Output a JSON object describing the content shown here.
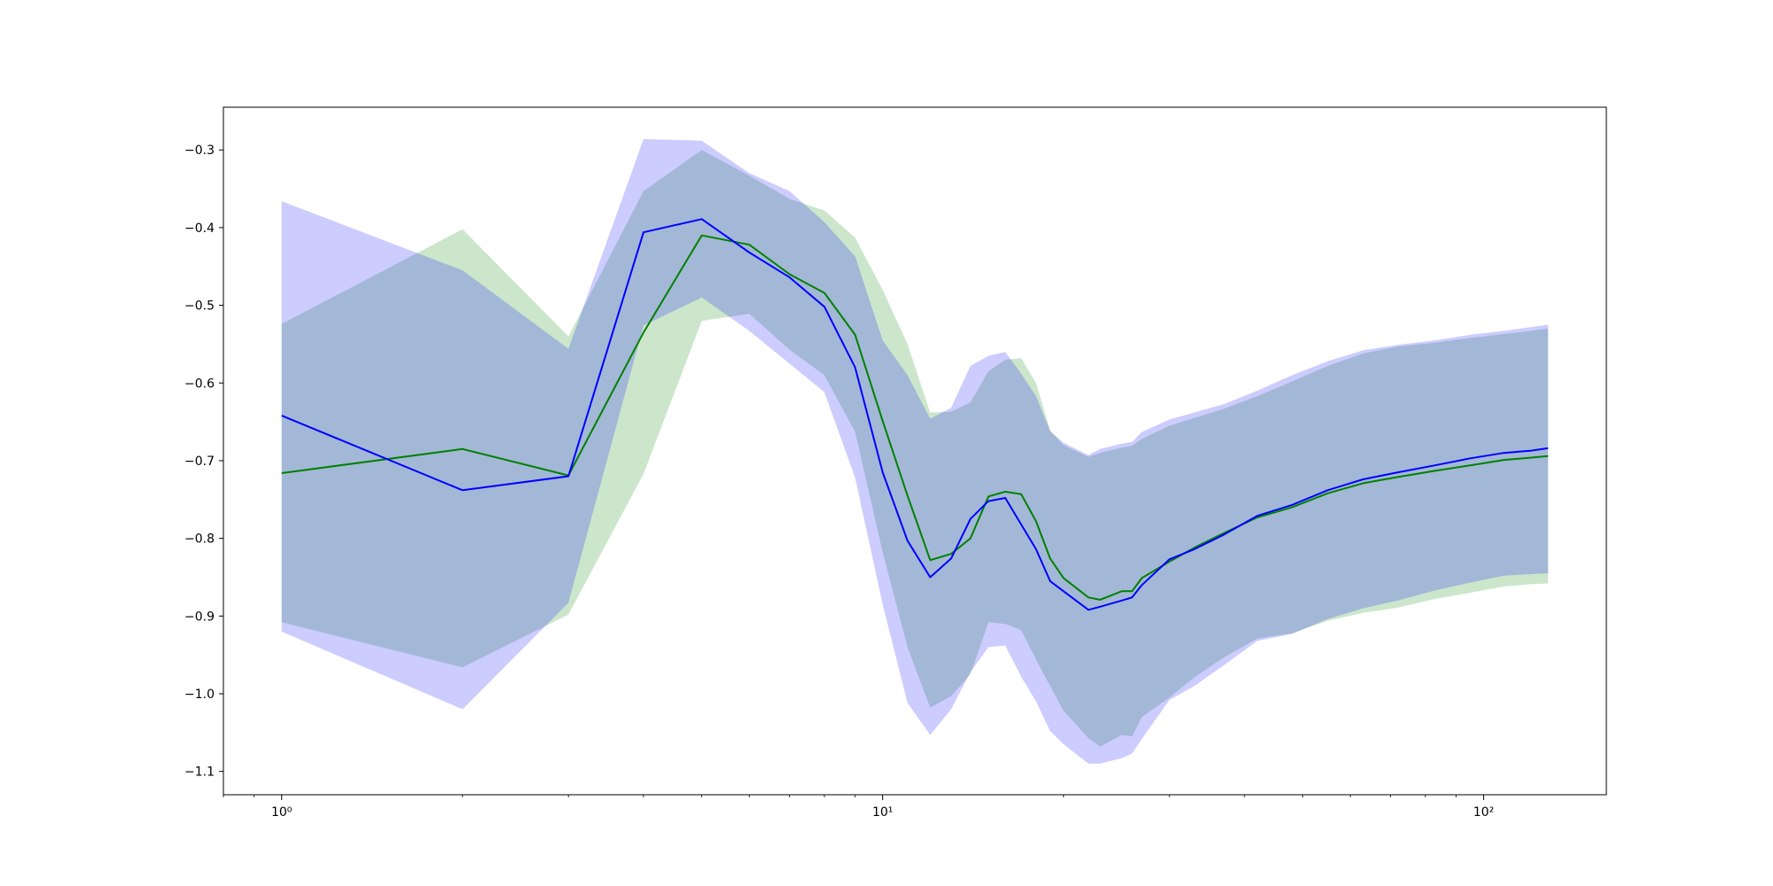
{
  "chart_data": {
    "type": "line",
    "title": "",
    "xlabel": "",
    "ylabel": "",
    "xscale": "log",
    "xlim": [
      0.8,
      160
    ],
    "ylim": [
      -1.13,
      -0.245
    ],
    "grid": false,
    "legend": "none",
    "x_major_ticks": [
      {
        "value": 1,
        "label": "10⁰"
      },
      {
        "value": 10,
        "label": "10¹"
      },
      {
        "value": 100,
        "label": "10²"
      }
    ],
    "y_ticks": [
      {
        "value": -1.1,
        "label": "−1.1"
      },
      {
        "value": -1.0,
        "label": "−1.0"
      },
      {
        "value": -0.9,
        "label": "−0.9"
      },
      {
        "value": -0.8,
        "label": "−0.8"
      },
      {
        "value": -0.7,
        "label": "−0.7"
      },
      {
        "value": -0.6,
        "label": "−0.6"
      },
      {
        "value": -0.5,
        "label": "−0.5"
      },
      {
        "value": -0.4,
        "label": "−0.4"
      },
      {
        "value": -0.3,
        "label": "−0.3"
      }
    ],
    "series": [
      {
        "color": "#008000",
        "band_color": "#008000",
        "band_opacity": 0.2,
        "points": [
          [
            1,
            -0.716,
            -0.524,
            -0.908
          ],
          [
            2,
            -0.685,
            -0.402,
            -0.966
          ],
          [
            3,
            -0.719,
            -0.54,
            -0.898
          ],
          [
            4,
            -0.535,
            -0.353,
            -0.717
          ],
          [
            5,
            -0.41,
            -0.3,
            -0.52
          ],
          [
            6,
            -0.422,
            -0.333,
            -0.511
          ],
          [
            7,
            -0.46,
            -0.363,
            -0.557
          ],
          [
            8,
            -0.484,
            -0.378,
            -0.59
          ],
          [
            9,
            -0.538,
            -0.413,
            -0.663
          ],
          [
            10,
            -0.649,
            -0.48,
            -0.818
          ],
          [
            11,
            -0.745,
            -0.55,
            -0.94
          ],
          [
            12,
            -0.828,
            -0.638,
            -1.018
          ],
          [
            13,
            -0.82,
            -0.637,
            -1.003
          ],
          [
            14,
            -0.8,
            -0.625,
            -0.975
          ],
          [
            15,
            -0.746,
            -0.585,
            -0.908
          ],
          [
            16,
            -0.74,
            -0.57,
            -0.91
          ],
          [
            17,
            -0.743,
            -0.568,
            -0.918
          ],
          [
            18,
            -0.778,
            -0.6,
            -0.956
          ],
          [
            19,
            -0.826,
            -0.661,
            -0.99
          ],
          [
            20,
            -0.851,
            -0.68,
            -1.022
          ],
          [
            22,
            -0.876,
            -0.695,
            -1.057
          ],
          [
            23,
            -0.879,
            -0.69,
            -1.068
          ],
          [
            25,
            -0.868,
            -0.683,
            -1.053
          ],
          [
            26,
            -0.868,
            -0.681,
            -1.055
          ],
          [
            27,
            -0.851,
            -0.672,
            -1.03
          ],
          [
            30,
            -0.83,
            -0.655,
            -1.005
          ],
          [
            33,
            -0.812,
            -0.645,
            -0.979
          ],
          [
            37,
            -0.793,
            -0.633,
            -0.953
          ],
          [
            42,
            -0.773,
            -0.617,
            -0.929
          ],
          [
            48,
            -0.76,
            -0.598,
            -0.922
          ],
          [
            55,
            -0.742,
            -0.578,
            -0.906
          ],
          [
            63,
            -0.729,
            -0.562,
            -0.896
          ],
          [
            72,
            -0.721,
            -0.553,
            -0.889
          ],
          [
            83,
            -0.713,
            -0.548,
            -0.878
          ],
          [
            95,
            -0.706,
            -0.542,
            -0.87
          ],
          [
            108,
            -0.699,
            -0.537,
            -0.862
          ],
          [
            120,
            -0.696,
            -0.533,
            -0.859
          ],
          [
            128,
            -0.694,
            -0.53,
            -0.858
          ]
        ]
      },
      {
        "color": "#0000ff",
        "band_color": "#0000ff",
        "band_opacity": 0.2,
        "points": [
          [
            1,
            -0.642,
            -0.366,
            -0.92
          ],
          [
            2,
            -0.738,
            -0.455,
            -1.02
          ],
          [
            3,
            -0.72,
            -0.556,
            -0.883
          ],
          [
            4,
            -0.406,
            -0.286,
            -0.526
          ],
          [
            5,
            -0.389,
            -0.288,
            -0.49
          ],
          [
            6,
            -0.432,
            -0.33,
            -0.533
          ],
          [
            7,
            -0.464,
            -0.353,
            -0.575
          ],
          [
            8,
            -0.502,
            -0.393,
            -0.612
          ],
          [
            9,
            -0.58,
            -0.437,
            -0.722
          ],
          [
            10,
            -0.715,
            -0.545,
            -0.885
          ],
          [
            11,
            -0.803,
            -0.59,
            -1.012
          ],
          [
            12,
            -0.85,
            -0.646,
            -1.053
          ],
          [
            13,
            -0.826,
            -0.632,
            -1.02
          ],
          [
            14,
            -0.775,
            -0.578,
            -0.972
          ],
          [
            15,
            -0.752,
            -0.565,
            -0.94
          ],
          [
            16,
            -0.748,
            -0.56,
            -0.938
          ],
          [
            17,
            -0.782,
            -0.588,
            -0.978
          ],
          [
            18,
            -0.814,
            -0.617,
            -1.01
          ],
          [
            19,
            -0.855,
            -0.662,
            -1.048
          ],
          [
            20,
            -0.868,
            -0.677,
            -1.065
          ],
          [
            22,
            -0.892,
            -0.693,
            -1.09
          ],
          [
            23,
            -0.888,
            -0.685,
            -1.09
          ],
          [
            25,
            -0.88,
            -0.678,
            -1.083
          ],
          [
            26,
            -0.876,
            -0.676,
            -1.077
          ],
          [
            27,
            -0.86,
            -0.663,
            -1.058
          ],
          [
            30,
            -0.827,
            -0.647,
            -1.008
          ],
          [
            33,
            -0.814,
            -0.638,
            -0.99
          ],
          [
            37,
            -0.795,
            -0.627,
            -0.963
          ],
          [
            42,
            -0.771,
            -0.61,
            -0.932
          ],
          [
            48,
            -0.757,
            -0.59,
            -0.923
          ],
          [
            55,
            -0.738,
            -0.572,
            -0.904
          ],
          [
            63,
            -0.724,
            -0.558,
            -0.89
          ],
          [
            72,
            -0.715,
            -0.551,
            -0.88
          ],
          [
            83,
            -0.706,
            -0.545,
            -0.867
          ],
          [
            95,
            -0.697,
            -0.538,
            -0.857
          ],
          [
            108,
            -0.69,
            -0.533,
            -0.848
          ],
          [
            120,
            -0.687,
            -0.528,
            -0.846
          ],
          [
            128,
            -0.684,
            -0.525,
            -0.845
          ]
        ]
      }
    ]
  }
}
